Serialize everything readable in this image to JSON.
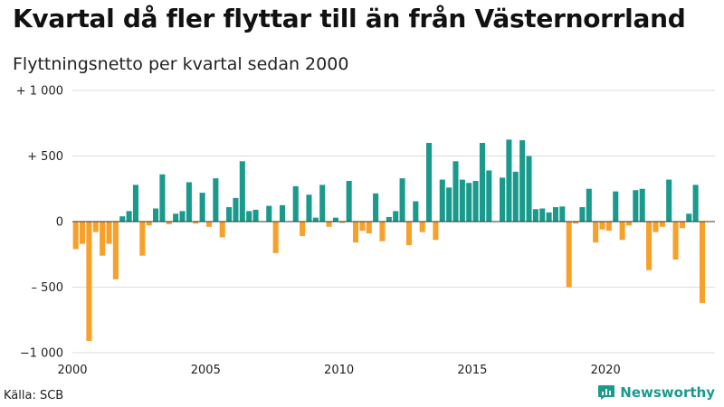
{
  "title": "Kvartal då fler flyttar till än från Västernorrland",
  "subtitle": "Flyttningsnetto per kvartal sedan 2000",
  "source": "Källa: SCB",
  "brand": {
    "name": "Newsworthy",
    "icon": "newsworthy-logo-icon"
  },
  "colors": {
    "positive": "#1a9a8c",
    "negative": "#f7a12b",
    "grid": "#dddddd",
    "zero": "#333333"
  },
  "chart_data": {
    "type": "bar",
    "title": "",
    "subtitle": "Flyttningsnetto per kvartal sedan 2000",
    "xlabel": "",
    "ylabel": "",
    "ylim": [
      -1000,
      1000
    ],
    "xlim": [
      2000,
      2024.1
    ],
    "grid": true,
    "y_ticks": [
      {
        "value": 1000,
        "label": "+ 1 000"
      },
      {
        "value": 500,
        "label": "+   500"
      },
      {
        "value": 0,
        "label": "0"
      },
      {
        "value": -500,
        "label": "–   500"
      },
      {
        "value": -1000,
        "label": "−1 000"
      }
    ],
    "x_ticks": [
      {
        "value": 2000,
        "label": "2000"
      },
      {
        "value": 2005,
        "label": "2005"
      },
      {
        "value": 2010,
        "label": "2010"
      },
      {
        "value": 2015,
        "label": "2015"
      },
      {
        "value": 2020,
        "label": "2020"
      }
    ],
    "categories": [
      "2000 K1",
      "2000 K2",
      "2000 K3",
      "2000 K4",
      "2001 K1",
      "2001 K2",
      "2001 K3",
      "2001 K4",
      "2002 K1",
      "2002 K2",
      "2002 K3",
      "2002 K4",
      "2003 K1",
      "2003 K2",
      "2003 K3",
      "2003 K4",
      "2004 K1",
      "2004 K2",
      "2004 K3",
      "2004 K4",
      "2005 K1",
      "2005 K2",
      "2005 K3",
      "2005 K4",
      "2006 K1",
      "2006 K2",
      "2006 K3",
      "2006 K4",
      "2007 K1",
      "2007 K2",
      "2007 K3",
      "2007 K4",
      "2008 K1",
      "2008 K2",
      "2008 K3",
      "2008 K4",
      "2009 K1",
      "2009 K2",
      "2009 K3",
      "2009 K4",
      "2010 K1",
      "2010 K2",
      "2010 K3",
      "2010 K4",
      "2011 K1",
      "2011 K2",
      "2011 K3",
      "2011 K4",
      "2012 K1",
      "2012 K2",
      "2012 K3",
      "2012 K4",
      "2013 K1",
      "2013 K2",
      "2013 K3",
      "2013 K4",
      "2014 K1",
      "2014 K2",
      "2014 K3",
      "2014 K4",
      "2015 K1",
      "2015 K2",
      "2015 K3",
      "2015 K4",
      "2016 K1",
      "2016 K2",
      "2016 K3",
      "2016 K4",
      "2017 K1",
      "2017 K2",
      "2017 K3",
      "2017 K4",
      "2018 K1",
      "2018 K2",
      "2018 K3",
      "2018 K4",
      "2019 K1",
      "2019 K2",
      "2019 K3",
      "2019 K4",
      "2020 K1",
      "2020 K2",
      "2020 K3",
      "2020 K4",
      "2021 K1",
      "2021 K2",
      "2021 K3",
      "2021 K4",
      "2022 K1",
      "2022 K2",
      "2022 K3",
      "2022 K4",
      "2023 K1",
      "2023 K2",
      "2023 K3",
      "2023 K4"
    ],
    "values": [
      -210,
      -170,
      -910,
      -80,
      -260,
      -170,
      -440,
      40,
      80,
      280,
      -260,
      -30,
      100,
      360,
      -20,
      60,
      80,
      300,
      -15,
      220,
      -40,
      330,
      -120,
      110,
      180,
      460,
      80,
      90,
      0,
      120,
      -240,
      125,
      0,
      270,
      -110,
      205,
      30,
      280,
      -40,
      30,
      -10,
      310,
      -160,
      -70,
      -90,
      215,
      -150,
      35,
      80,
      330,
      -180,
      155,
      -80,
      600,
      -140,
      320,
      260,
      460,
      320,
      295,
      310,
      600,
      390,
      0,
      335,
      625,
      380,
      620,
      500,
      95,
      100,
      70,
      110,
      115,
      -500,
      -15,
      110,
      250,
      -160,
      -60,
      -70,
      230,
      -140,
      -30,
      240,
      250,
      -370,
      -80,
      -40,
      320,
      -290,
      -50,
      60,
      280,
      -620,
      0
    ]
  }
}
